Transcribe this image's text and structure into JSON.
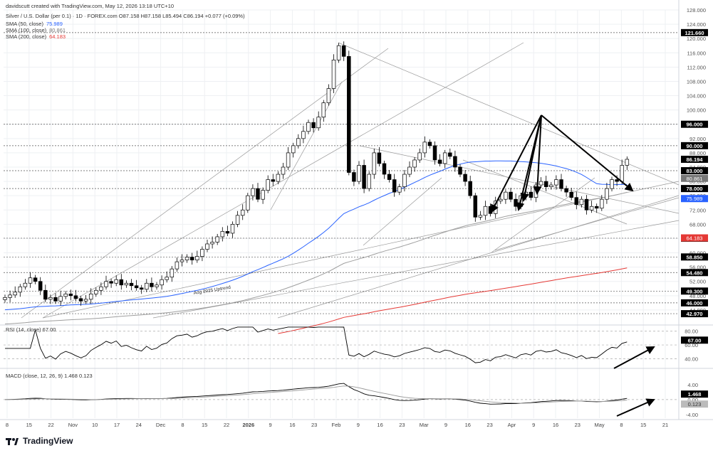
{
  "header": {
    "created": "davidscutt created with TradingView.com, May 12, 2026 13:18 UTC+10",
    "symbol_line": "Silver / U.S. Dollar (per 0.1) · 1D · FOREX.com  O87.158  H87.158  L85.494  C86.194  +0.077 (+0.09%)",
    "sma50": {
      "label": "SMA (50, close)",
      "value": "75.989"
    },
    "sma100": {
      "label": "SMA (100, close)",
      "value": "80.861"
    },
    "sma200": {
      "label": "SMA (200, close)",
      "value": "64.183"
    }
  },
  "brand": "TradingView",
  "annotation": "Aug 2025 Uptrend",
  "colors": {
    "up": "#ffffff",
    "down": "#000000",
    "sma50": "#2962ff",
    "sma100": "#9e9e9e",
    "sma200": "#e53935",
    "grid": "#eef0f3",
    "axis": "#555555"
  },
  "chart_data": [
    {
      "type": "candlestick",
      "title": "Silver / U.S. Dollar (per 0.1) · 1D · FOREX.com",
      "ylim": [
        40,
        128
      ],
      "y_ticks": [
        44,
        48,
        52,
        56,
        60,
        64,
        68,
        72,
        76,
        80,
        84,
        88,
        92,
        96,
        100,
        104,
        108,
        112,
        116,
        120,
        124,
        128
      ],
      "x_ticks": [
        "8",
        "15",
        "22",
        "Nov",
        "10",
        "17",
        "24",
        "Dec",
        "8",
        "15",
        "22",
        "2026",
        "9",
        "16",
        "23",
        "Feb",
        "9",
        "16",
        "23",
        "Mar",
        "9",
        "16",
        "23",
        "Apr",
        "9",
        "16",
        "23",
        "May",
        "8",
        "15",
        "21"
      ],
      "closes": [
        47.5,
        48.2,
        49.0,
        50.5,
        51.5,
        53.0,
        52.0,
        49.5,
        47.0,
        47.5,
        46.5,
        47.8,
        48.5,
        48.0,
        47.2,
        46.5,
        47.0,
        48.5,
        49.5,
        50.5,
        52.0,
        51.5,
        52.5,
        51.0,
        51.5,
        50.8,
        50.2,
        49.8,
        51.5,
        50.5,
        51.0,
        52.5,
        53.2,
        55.5,
        57.5,
        58.0,
        58.8,
        58.0,
        59.0,
        61.0,
        62.5,
        63.0,
        64.5,
        66.0,
        65.5,
        68.0,
        70.5,
        72.0,
        76.0,
        78.0,
        75.0,
        77.5,
        80.5,
        80.0,
        82.0,
        84.0,
        88.0,
        90.0,
        92.0,
        94.0,
        96.5,
        95.0,
        98.0,
        102.0,
        106.0,
        114.0,
        118.0,
        115.0,
        82.5,
        80.0,
        84.5,
        78.0,
        82.0,
        88.0,
        85.0,
        82.0,
        80.5,
        77.0,
        78.5,
        82.0,
        84.0,
        86.0,
        88.0,
        91.0,
        90.0,
        86.0,
        85.0,
        88.0,
        87.0,
        84.0,
        82.0,
        80.0,
        76.0,
        70.0,
        70.5,
        73.0,
        71.0,
        74.5,
        75.0,
        77.0,
        75.0,
        73.0,
        76.0,
        77.0,
        75.5,
        79.0,
        80.0,
        78.5,
        79.0,
        80.5,
        78.0,
        77.0,
        75.5,
        73.5,
        75.0,
        72.0,
        73.0,
        72.5,
        75.0,
        78.0,
        80.5,
        80.0,
        84.5,
        86.194
      ],
      "levels": [
        121.66,
        96.0,
        90.0,
        83.0,
        78.0,
        64.1,
        58.85,
        54.48,
        49.3,
        46.0,
        42.97
      ],
      "level_labels": [
        "121.660",
        "96.000",
        "90.000",
        "83.000",
        "78.000",
        "64.100",
        "58.850",
        "54.480",
        "49.300",
        "46.000",
        "42.970"
      ],
      "last_price": {
        "value": 86.194,
        "label": "86.194"
      },
      "sma_labels": [
        {
          "name": "SMA (100, close)",
          "label": "80.861"
        },
        {
          "name": "SMA (50, close)",
          "label": "75.989"
        },
        {
          "name": "SMA (200, close)",
          "label": "64.183"
        }
      ]
    },
    {
      "type": "line",
      "title": "RSI (14, close) 67.00",
      "ylim": [
        28,
        88
      ],
      "y_ticks": [
        40,
        60,
        80
      ],
      "series": [
        {
          "name": "RSI (14, close)",
          "last_label": "67.00"
        }
      ]
    },
    {
      "type": "line",
      "title": "MACD (close, 12, 26, 9) 1.468 0.123",
      "ylim": [
        -5,
        8
      ],
      "y_ticks": [
        -4.0,
        0.0,
        4.0
      ],
      "series": [
        {
          "name": "MACD",
          "last_label": "1.468"
        },
        {
          "name": "Signal",
          "last_label": "0.123"
        }
      ]
    }
  ]
}
